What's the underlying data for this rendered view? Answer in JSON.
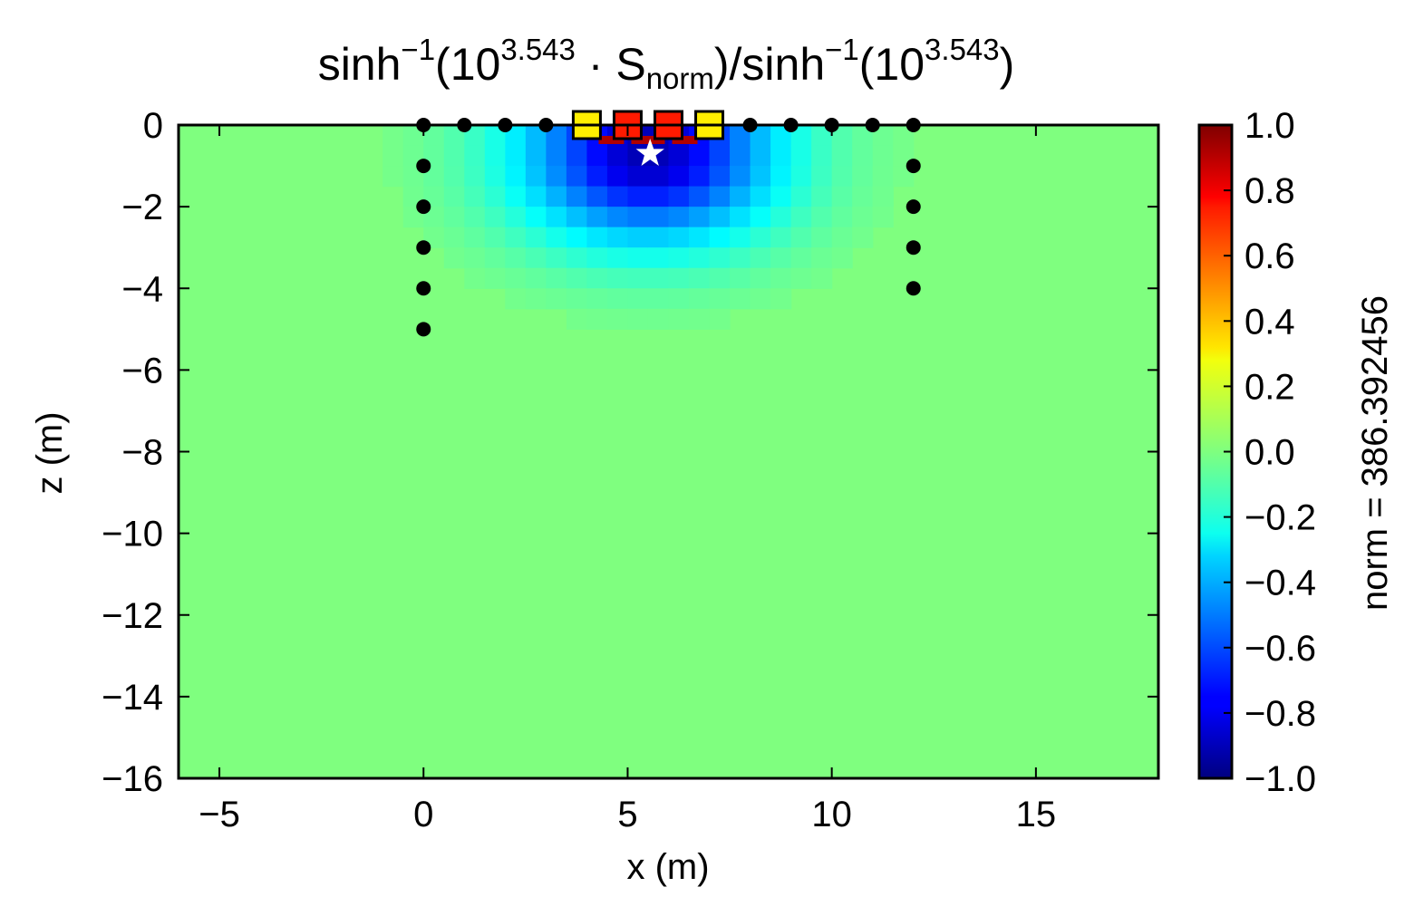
{
  "chart_data": {
    "type": "heatmap",
    "title": {
      "part1": "sinh",
      "sup1": "−1",
      "part2": "(10",
      "sup2": "3.543",
      "part3": " · S",
      "sub": "norm",
      "part4": ")/sinh",
      "sup3": "−1",
      "part5": "(10",
      "sup4": "3.543",
      "part6": ")"
    },
    "xlabel": "x (m)",
    "ylabel": "z (m)",
    "xlim": [
      -6,
      18
    ],
    "ylim": [
      -16,
      0
    ],
    "x_ticks": [
      -5,
      0,
      5,
      10,
      15
    ],
    "y_ticks": [
      0,
      -2,
      -4,
      -6,
      -8,
      -10,
      -12,
      -14,
      -16
    ],
    "x_tick_labels": [
      "−5",
      "0",
      "5",
      "10",
      "15"
    ],
    "y_tick_labels": [
      "0",
      "−2",
      "−4",
      "−6",
      "−8",
      "−10",
      "−12",
      "−14",
      "−16"
    ],
    "colormap": "jet",
    "background_color": "#7fff7f",
    "colorbar": {
      "vmin": -1.0,
      "vmax": 1.0,
      "ticks": [
        1.0,
        0.8,
        0.6,
        0.4,
        0.2,
        0.0,
        -0.2,
        -0.4,
        -0.6,
        -0.8,
        -1.0
      ],
      "tick_labels": [
        "1.0",
        "0.8",
        "0.6",
        "0.4",
        "0.2",
        "0.0",
        "−0.2",
        "−0.4",
        "−0.6",
        "−0.8",
        "−1.0"
      ],
      "label": "norm = 386.392456"
    },
    "sensitivity_anomaly": {
      "center_x": 5.5,
      "core_depth": 0.8,
      "peak_value": -0.9,
      "halfwidth_x": 3.0,
      "halfwidth_z": 2.0
    },
    "surface_electrodes_x": [
      0,
      1,
      2,
      3,
      8,
      9,
      10,
      11,
      12
    ],
    "left_borehole": {
      "x": 0,
      "z": [
        -1,
        -2,
        -3,
        -4,
        -5
      ]
    },
    "right_borehole": {
      "x": 12,
      "z": [
        -1,
        -2,
        -3,
        -4
      ]
    },
    "quadrupole": [
      {
        "x": 4,
        "value": 0.3,
        "color": "#ffee00"
      },
      {
        "x": 5,
        "value": 0.8,
        "color": "#ff1a00"
      },
      {
        "x": 6,
        "value": 0.8,
        "color": "#ff1a00"
      },
      {
        "x": 7,
        "value": 0.3,
        "color": "#ffee00"
      }
    ],
    "star": {
      "x": 5.55,
      "z": -0.7
    }
  }
}
